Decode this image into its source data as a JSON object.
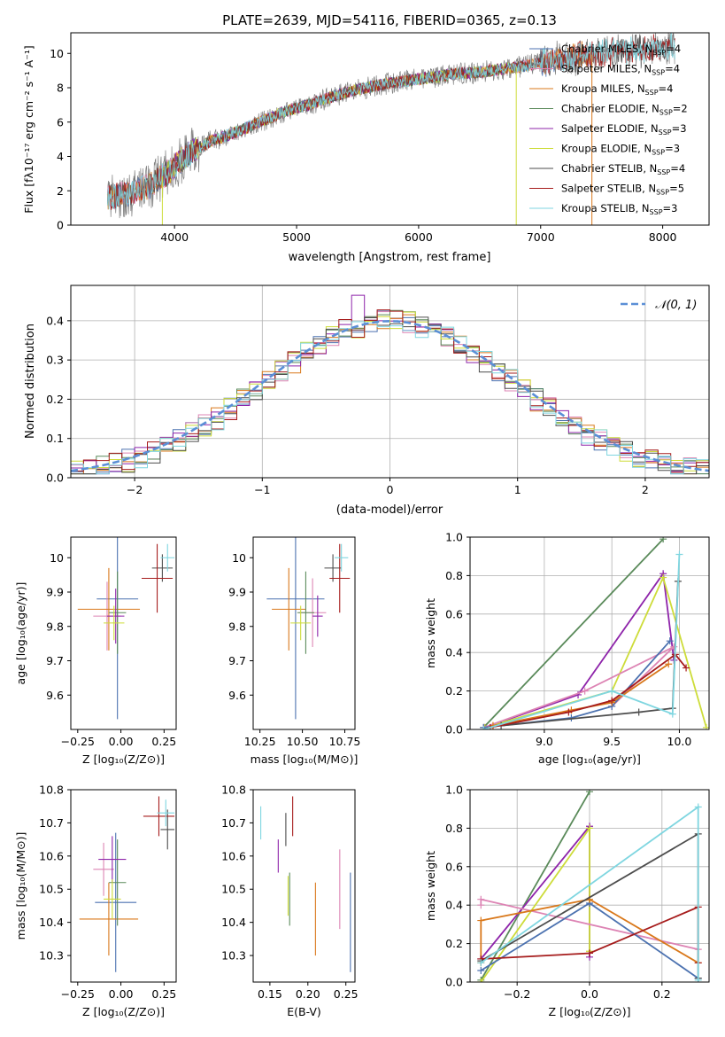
{
  "colors": {
    "cmiles": "#4c72b0",
    "smiles": "#dd84b4",
    "kmiles": "#d9781b",
    "celodie": "#5a8a5a",
    "selodie": "#8e24aa",
    "kelodie": "#cddc39",
    "cstelib": "#4d4d4d",
    "sstelib": "#a61c1c",
    "kstelib": "#7fd6e0",
    "normal": "#5b8fd6",
    "spec_grey": "#808080"
  },
  "chart_data": [
    {
      "id": "spectrum",
      "type": "line",
      "title": "PLATE=2639, MJD=54116, FIBERID=0365, z=0.13",
      "xlabel": "wavelength [Angstrom, rest frame]",
      "ylabel": "Flux [fλ10⁻¹⁷ erg cm⁻² s⁻¹ A⁻¹]",
      "xlim": [
        3150,
        8380
      ],
      "ylim": [
        0,
        11.2
      ],
      "xticks": [
        4000,
        5000,
        6000,
        7000,
        8000
      ],
      "yticks": [
        0,
        2,
        4,
        6,
        8,
        10
      ],
      "continuum": {
        "x": [
          3450,
          3600,
          3800,
          3950,
          4100,
          4300,
          4500,
          4700,
          4900,
          5100,
          5300,
          5500,
          5700,
          5900,
          6100,
          6300,
          6500,
          6700,
          6900,
          7100,
          7300,
          7500,
          7700,
          7900,
          8100
        ],
        "y": [
          1.6,
          1.8,
          2.3,
          3.1,
          4.1,
          4.9,
          5.4,
          6.0,
          6.6,
          7.0,
          7.5,
          7.9,
          8.2,
          8.4,
          8.6,
          8.8,
          8.9,
          9.1,
          9.3,
          9.6,
          9.8,
          10.0,
          10.2,
          10.3,
          10.4
        ]
      },
      "series": [
        {
          "name": "Chabrier MILES, N_SSP=4",
          "label": "Chabrier MILES, N",
          "sub": "SSP",
          "tail": "=4",
          "color": "#4c72b0",
          "cut_start": 3450,
          "cut_end": 7420
        },
        {
          "name": "Salpeter MILES, N_SSP=4",
          "label": "Salpeter MILES, N",
          "sub": "SSP",
          "tail": "=4",
          "color": "#dd84b4",
          "cut_start": 3450,
          "cut_end": 7420
        },
        {
          "name": "Kroupa MILES, N_SSP=4",
          "label": "Kroupa MILES, N",
          "sub": "SSP",
          "tail": "=4",
          "color": "#d9781b",
          "cut_start": 3450,
          "cut_end": 7420
        },
        {
          "name": "Chabrier ELODIE, N_SSP=2",
          "label": "Chabrier ELODIE, N",
          "sub": "SSP",
          "tail": "=2",
          "color": "#5a8a5a",
          "cut_start": 3900,
          "cut_end": 6800
        },
        {
          "name": "Salpeter ELODIE, N_SSP=3",
          "label": "Salpeter ELODIE, N",
          "sub": "SSP",
          "tail": "=3",
          "color": "#8e24aa",
          "cut_start": 3900,
          "cut_end": 6800
        },
        {
          "name": "Kroupa ELODIE, N_SSP=3",
          "label": "Kroupa ELODIE, N",
          "sub": "SSP",
          "tail": "=3",
          "color": "#cddc39",
          "cut_start": 3900,
          "cut_end": 6800
        },
        {
          "name": "Chabrier STELIB, N_SSP=4",
          "label": "Chabrier STELIB, N",
          "sub": "SSP",
          "tail": "=4",
          "color": "#4d4d4d",
          "cut_start": 3450,
          "cut_end": 8100
        },
        {
          "name": "Salpeter STELIB, N_SSP=5",
          "label": "Salpeter STELIB, N",
          "sub": "SSP",
          "tail": "=5",
          "color": "#a61c1c",
          "cut_start": 3450,
          "cut_end": 8100
        },
        {
          "name": "Kroupa STELIB, N_SSP=3",
          "label": "Kroupa STELIB, N",
          "sub": "SSP",
          "tail": "=3",
          "color": "#7fd6e0",
          "cut_start": 3450,
          "cut_end": 8100
        }
      ]
    },
    {
      "id": "residuals",
      "type": "histogram",
      "xlabel": "(data-model)/error",
      "ylabel": "Normed distribution",
      "xlim": [
        -2.5,
        2.5
      ],
      "ylim": [
        0,
        0.49
      ],
      "xticks": [
        -2,
        -1,
        0,
        1,
        2
      ],
      "xtick_labels": [
        "−2",
        "−1",
        "0",
        "1",
        "2"
      ],
      "yticks": [
        0.0,
        0.1,
        0.2,
        0.3,
        0.4
      ],
      "ytick_labels": [
        "0.0",
        "0.1",
        "0.2",
        "0.3",
        "0.4"
      ],
      "grid": true,
      "legend": {
        "label": "𝒩(0, 1)",
        "position": "top-right"
      },
      "bin_width": 0.1,
      "bin_start": -2.5,
      "bin_counts": 50
    },
    {
      "id": "age-vs-Z",
      "type": "scatter",
      "xlabel": "Z [log₁₀(Z/Z⊙)]",
      "ylabel": "age  [log₁₀(age/yr)]",
      "xlim": [
        -0.29,
        0.32
      ],
      "ylim": [
        9.5,
        10.06
      ],
      "xticks": [
        -0.25,
        0.0,
        0.25
      ],
      "xtick_labels": [
        "−0.25",
        "0.00",
        "0.25"
      ],
      "yticks": [
        9.6,
        9.7,
        9.8,
        9.9,
        10.0
      ],
      "points": [
        {
          "color": "#4c72b0",
          "x": -0.02,
          "xerr": 0.12,
          "y": 9.88,
          "yerr": 0.35
        },
        {
          "color": "#dd84b4",
          "x": -0.08,
          "xerr": 0.08,
          "y": 9.83,
          "yerr": 0.1
        },
        {
          "color": "#d9781b",
          "x": -0.07,
          "xerr": 0.18,
          "y": 9.85,
          "yerr": 0.12
        },
        {
          "color": "#5a8a5a",
          "x": -0.02,
          "xerr": 0.05,
          "y": 9.84,
          "yerr": 0.12
        },
        {
          "color": "#8e24aa",
          "x": -0.03,
          "xerr": 0.05,
          "y": 9.83,
          "yerr": 0.08
        },
        {
          "color": "#cddc39",
          "x": -0.04,
          "xerr": 0.06,
          "y": 9.81,
          "yerr": 0.05
        },
        {
          "color": "#4d4d4d",
          "x": 0.24,
          "xerr": 0.06,
          "y": 9.97,
          "yerr": 0.04
        },
        {
          "color": "#a61c1c",
          "x": 0.21,
          "xerr": 0.09,
          "y": 9.94,
          "yerr": 0.1
        },
        {
          "color": "#7fd6e0",
          "x": 0.27,
          "xerr": 0.04,
          "y": 10.0,
          "yerr": 0.04
        }
      ]
    },
    {
      "id": "age-vs-mass",
      "type": "scatter",
      "xlabel": "mass [log₁₀(M/M⊙)]",
      "ylabel": "",
      "xlim": [
        10.21,
        10.81
      ],
      "ylim": [
        9.5,
        10.06
      ],
      "xticks": [
        10.25,
        10.5,
        10.75
      ],
      "xtick_labels": [
        "10.25",
        "10.50",
        "10.75"
      ],
      "yticks": [
        9.6,
        9.7,
        9.8,
        9.9,
        10.0
      ],
      "points": [
        {
          "color": "#4c72b0",
          "x": 10.46,
          "xerr": 0.17,
          "y": 9.88,
          "yerr": 0.35
        },
        {
          "color": "#dd84b4",
          "x": 10.56,
          "xerr": 0.08,
          "y": 9.84,
          "yerr": 0.1
        },
        {
          "color": "#d9781b",
          "x": 10.42,
          "xerr": 0.1,
          "y": 9.85,
          "yerr": 0.12
        },
        {
          "color": "#5a8a5a",
          "x": 10.52,
          "xerr": 0.05,
          "y": 9.84,
          "yerr": 0.12
        },
        {
          "color": "#8e24aa",
          "x": 10.59,
          "xerr": 0.03,
          "y": 9.83,
          "yerr": 0.06
        },
        {
          "color": "#cddc39",
          "x": 10.49,
          "xerr": 0.06,
          "y": 9.81,
          "yerr": 0.05
        },
        {
          "color": "#4d4d4d",
          "x": 10.68,
          "xerr": 0.05,
          "y": 9.97,
          "yerr": 0.04
        },
        {
          "color": "#a61c1c",
          "x": 10.72,
          "xerr": 0.06,
          "y": 9.94,
          "yerr": 0.1
        },
        {
          "color": "#7fd6e0",
          "x": 10.73,
          "xerr": 0.04,
          "y": 10.0,
          "yerr": 0.04
        }
      ]
    },
    {
      "id": "weight-vs-age",
      "type": "line",
      "xlabel": "age  [log₁₀(age/yr)]",
      "ylabel": "mass weight",
      "xlim": [
        8.45,
        10.22
      ],
      "ylim": [
        0,
        1.0
      ],
      "xticks": [
        9.0,
        9.5,
        10.0
      ],
      "xtick_labels": [
        "9.0",
        "9.5",
        "10.0"
      ],
      "yticks": [
        0.0,
        0.2,
        0.4,
        0.6,
        0.8,
        1.0
      ],
      "grid": true,
      "series": [
        {
          "color": "#5a8a5a",
          "x": [
            8.55,
            9.88
          ],
          "y": [
            0.01,
            0.99
          ]
        },
        {
          "color": "#8e24aa",
          "x": [
            8.56,
            9.25,
            9.88,
            9.96
          ],
          "y": [
            0.01,
            0.18,
            0.81,
            0.36
          ]
        },
        {
          "color": "#cddc39",
          "x": [
            8.56,
            9.5,
            9.88,
            10.2
          ],
          "y": [
            0.01,
            0.2,
            0.79,
            0.01
          ]
        },
        {
          "color": "#dd84b4",
          "x": [
            8.55,
            9.3,
            9.96,
            9.5
          ],
          "y": [
            0.01,
            0.2,
            0.43,
            0.12
          ]
        },
        {
          "color": "#4c72b0",
          "x": [
            8.55,
            9.2,
            9.5,
            9.93
          ],
          "y": [
            0.01,
            0.06,
            0.12,
            0.46
          ]
        },
        {
          "color": "#d9781b",
          "x": [
            8.62,
            9.2,
            9.5,
            9.92
          ],
          "y": [
            0.02,
            0.1,
            0.14,
            0.34
          ]
        },
        {
          "color": "#4d4d4d",
          "x": [
            8.68,
            9.7,
            9.95,
            9.99
          ],
          "y": [
            0.02,
            0.09,
            0.11,
            0.77
          ]
        },
        {
          "color": "#a61c1c",
          "x": [
            8.6,
            9.18,
            9.5,
            9.97,
            10.05
          ],
          "y": [
            0.01,
            0.09,
            0.15,
            0.39,
            0.32
          ]
        },
        {
          "color": "#7fd6e0",
          "x": [
            8.55,
            9.5,
            9.95,
            10.0
          ],
          "y": [
            0.0,
            0.2,
            0.08,
            0.91
          ]
        }
      ]
    },
    {
      "id": "mass-vs-Z",
      "type": "scatter",
      "xlabel": "Z [log₁₀(Z/Z⊙)]",
      "ylabel": "mass [log₁₀(M/M⊙)]",
      "xlim": [
        -0.29,
        0.32
      ],
      "ylim": [
        10.22,
        10.8
      ],
      "xticks": [
        -0.25,
        0.0,
        0.25
      ],
      "xtick_labels": [
        "−0.25",
        "0.00",
        "0.25"
      ],
      "yticks": [
        10.3,
        10.4,
        10.5,
        10.6,
        10.7,
        10.8
      ],
      "points": [
        {
          "color": "#4c72b0",
          "x": -0.03,
          "xerr": 0.12,
          "y": 10.46,
          "yerr": 0.21
        },
        {
          "color": "#dd84b4",
          "x": -0.1,
          "xerr": 0.06,
          "y": 10.56,
          "yerr": 0.08
        },
        {
          "color": "#d9781b",
          "x": -0.07,
          "xerr": 0.17,
          "y": 10.41,
          "yerr": 0.11
        },
        {
          "color": "#5a8a5a",
          "x": -0.02,
          "xerr": 0.05,
          "y": 10.52,
          "yerr": 0.13
        },
        {
          "color": "#8e24aa",
          "x": -0.05,
          "xerr": 0.08,
          "y": 10.59,
          "yerr": 0.07
        },
        {
          "color": "#cddc39",
          "x": -0.05,
          "xerr": 0.05,
          "y": 10.47,
          "yerr": 0.06
        },
        {
          "color": "#4d4d4d",
          "x": 0.27,
          "xerr": 0.04,
          "y": 10.68,
          "yerr": 0.06
        },
        {
          "color": "#a61c1c",
          "x": 0.22,
          "xerr": 0.09,
          "y": 10.72,
          "yerr": 0.06
        },
        {
          "color": "#7fd6e0",
          "x": 0.26,
          "xerr": 0.05,
          "y": 10.73,
          "yerr": 0.04
        }
      ]
    },
    {
      "id": "mass-vs-EBV",
      "type": "scatter",
      "xlabel": "E(B-V)",
      "ylabel": "",
      "xlim": [
        0.128,
        0.262
      ],
      "ylim": [
        10.22,
        10.8
      ],
      "xticks": [
        0.15,
        0.2,
        0.25
      ],
      "xtick_labels": [
        "0.15",
        "0.20",
        "0.25"
      ],
      "yticks": [
        10.3,
        10.4,
        10.5,
        10.6,
        10.7,
        10.8
      ],
      "points": [
        {
          "color": "#7fd6e0",
          "x": 0.138,
          "xerr": 0.0,
          "y": 10.7,
          "yerr": 0.05
        },
        {
          "color": "#8e24aa",
          "x": 0.161,
          "xerr": 0.0,
          "y": 10.6,
          "yerr": 0.05
        },
        {
          "color": "#4d4d4d",
          "x": 0.171,
          "xerr": 0.0,
          "y": 10.68,
          "yerr": 0.05
        },
        {
          "color": "#cddc39",
          "x": 0.174,
          "xerr": 0.0,
          "y": 10.48,
          "yerr": 0.06
        },
        {
          "color": "#5a8a5a",
          "x": 0.176,
          "xerr": 0.0,
          "y": 10.47,
          "yerr": 0.08
        },
        {
          "color": "#a61c1c",
          "x": 0.18,
          "xerr": 0.0,
          "y": 10.72,
          "yerr": 0.06
        },
        {
          "color": "#d9781b",
          "x": 0.21,
          "xerr": 0.0,
          "y": 10.41,
          "yerr": 0.11
        },
        {
          "color": "#dd84b4",
          "x": 0.242,
          "xerr": 0.0,
          "y": 10.5,
          "yerr": 0.12
        },
        {
          "color": "#4c72b0",
          "x": 0.256,
          "xerr": 0.0,
          "y": 10.4,
          "yerr": 0.15
        }
      ]
    },
    {
      "id": "weight-vs-Z",
      "type": "line",
      "xlabel": "Z [log₁₀(Z/Z⊙)]",
      "ylabel": "mass weight",
      "xlim": [
        -0.33,
        0.33
      ],
      "ylim": [
        0,
        1.0
      ],
      "xticks": [
        -0.2,
        0.0,
        0.2
      ],
      "xtick_labels": [
        "−0.2",
        "0.0",
        "0.2"
      ],
      "yticks": [
        0.0,
        0.2,
        0.4,
        0.6,
        0.8,
        1.0
      ],
      "grid": true,
      "series": [
        {
          "color": "#5a8a5a",
          "x": [
            -0.3,
            0.0
          ],
          "y": [
            0.01,
            0.99
          ]
        },
        {
          "color": "#8e24aa",
          "x": [
            -0.3,
            0.0,
            0.0
          ],
          "y": [
            0.12,
            0.81,
            0.13
          ]
        },
        {
          "color": "#cddc39",
          "x": [
            -0.3,
            0.0,
            0.0
          ],
          "y": [
            0.0,
            0.8,
            0.16
          ]
        },
        {
          "color": "#dd84b4",
          "x": [
            -0.3,
            -0.3,
            0.3
          ],
          "y": [
            0.4,
            0.43,
            0.17
          ]
        },
        {
          "color": "#4c72b0",
          "x": [
            -0.3,
            0.0,
            0.3
          ],
          "y": [
            0.06,
            0.41,
            0.02
          ]
        },
        {
          "color": "#d9781b",
          "x": [
            -0.3,
            -0.3,
            0.0,
            0.3
          ],
          "y": [
            0.1,
            0.32,
            0.43,
            0.1
          ]
        },
        {
          "color": "#4d4d4d",
          "x": [
            -0.3,
            0.3,
            0.3
          ],
          "y": [
            0.11,
            0.77,
            0.02
          ]
        },
        {
          "color": "#a61c1c",
          "x": [
            -0.3,
            0.0,
            0.3,
            0.3
          ],
          "y": [
            0.12,
            0.15,
            0.39,
            0.1
          ]
        },
        {
          "color": "#7fd6e0",
          "x": [
            -0.3,
            0.3,
            0.3
          ],
          "y": [
            0.1,
            0.91,
            0.01
          ]
        }
      ]
    }
  ]
}
